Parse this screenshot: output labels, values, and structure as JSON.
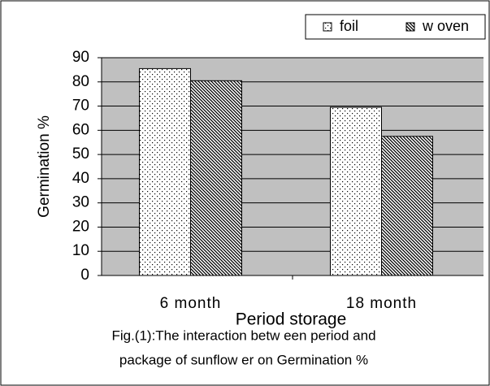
{
  "chart_data": {
    "type": "bar",
    "categories": [
      "6 month",
      "18 month"
    ],
    "series": [
      {
        "name": "foil",
        "pattern": "dots",
        "values": [
          85.5,
          69.5
        ]
      },
      {
        "name": "w oven",
        "pattern": "hatch",
        "values": [
          80.5,
          57.5
        ]
      }
    ],
    "ylim": [
      0,
      90
    ],
    "yticks": [
      0,
      10,
      20,
      30,
      40,
      50,
      60,
      70,
      80,
      90
    ],
    "grid": true,
    "y_label": "Germination %",
    "x_label": "Period storage",
    "caption": [
      "Fig.(1):The interaction betw een period and",
      "package of sunflow er on Germination %"
    ],
    "legend": "top-right"
  }
}
